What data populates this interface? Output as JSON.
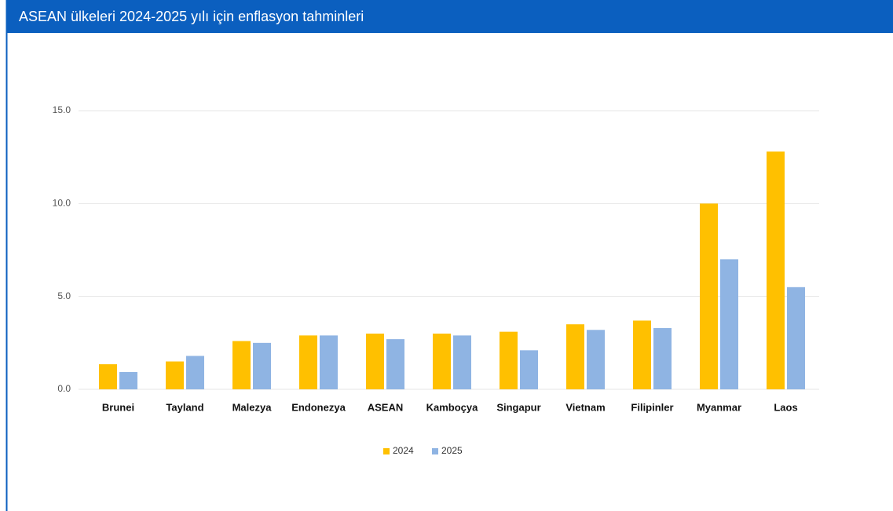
{
  "chart_data": {
    "type": "bar",
    "title": "ASEAN ülkeleri 2024-2025 yılı için enflasyon tahminleri",
    "categories": [
      "Brunei",
      "Tayland",
      "Malezya",
      "Endonezya",
      "ASEAN",
      "Kamboçya",
      "Singapur",
      "Vietnam",
      "Filipinler",
      "Myanmar",
      "Laos"
    ],
    "series": [
      {
        "name": "2024",
        "color": "#FFC000",
        "values": [
          1.35,
          1.5,
          2.6,
          2.9,
          3.0,
          3.0,
          3.1,
          3.5,
          3.7,
          10.0,
          12.8
        ]
      },
      {
        "name": "2025",
        "color": "#8FB4E3",
        "values": [
          0.93,
          1.8,
          2.5,
          2.9,
          2.7,
          2.9,
          2.1,
          3.2,
          3.3,
          7.0,
          5.5
        ]
      }
    ],
    "ylim": [
      0,
      15
    ],
    "yticks": [
      {
        "value": 0,
        "label": "0.0"
      },
      {
        "value": 5,
        "label": "5.0"
      },
      {
        "value": 10,
        "label": "10.0"
      },
      {
        "value": 15,
        "label": "15.0"
      }
    ],
    "grid": true,
    "legend": "bottom"
  }
}
